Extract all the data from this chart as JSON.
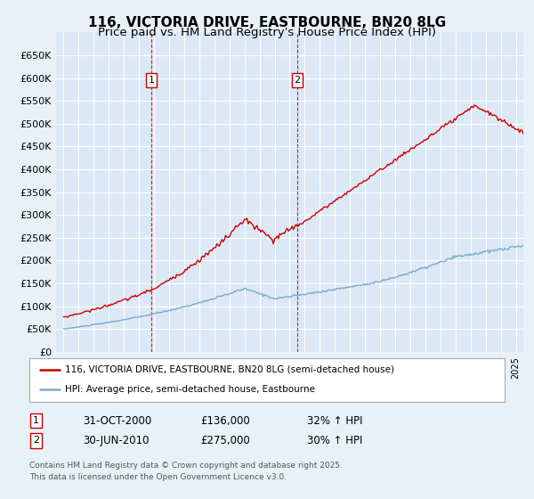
{
  "title": "116, VICTORIA DRIVE, EASTBOURNE, BN20 8LG",
  "subtitle": "Price paid vs. HM Land Registry's House Price Index (HPI)",
  "legend_line1": "116, VICTORIA DRIVE, EASTBOURNE, BN20 8LG (semi-detached house)",
  "legend_line2": "HPI: Average price, semi-detached house, Eastbourne",
  "ylim": [
    0,
    700000
  ],
  "yticks": [
    0,
    50000,
    100000,
    150000,
    200000,
    250000,
    300000,
    350000,
    400000,
    450000,
    500000,
    550000,
    600000,
    650000
  ],
  "ytick_labels": [
    "£0",
    "£50K",
    "£100K",
    "£150K",
    "£200K",
    "£250K",
    "£300K",
    "£350K",
    "£400K",
    "£450K",
    "£500K",
    "£550K",
    "£600K",
    "£650K"
  ],
  "background_color": "#e8f0f8",
  "plot_bg_color": "#dce8f5",
  "grid_color": "#ffffff",
  "red_line_color": "#cc0000",
  "blue_line_color": "#7aaacc",
  "vline_color": "#cc0000",
  "sale1_x": 2000.83,
  "sale1_y": 136000,
  "sale1_label": "1",
  "sale1_date": "31-OCT-2000",
  "sale1_price": "£136,000",
  "sale1_hpi": "32% ↑ HPI",
  "sale2_x": 2010.5,
  "sale2_y": 275000,
  "sale2_label": "2",
  "sale2_date": "30-JUN-2010",
  "sale2_price": "£275,000",
  "sale2_hpi": "30% ↑ HPI",
  "copyright_text": "Contains HM Land Registry data © Crown copyright and database right 2025.\nThis data is licensed under the Open Government Licence v3.0.",
  "title_fontsize": 11,
  "subtitle_fontsize": 9.5,
  "tick_fontsize": 8,
  "xmin": 1994.5,
  "xmax": 2025.5
}
